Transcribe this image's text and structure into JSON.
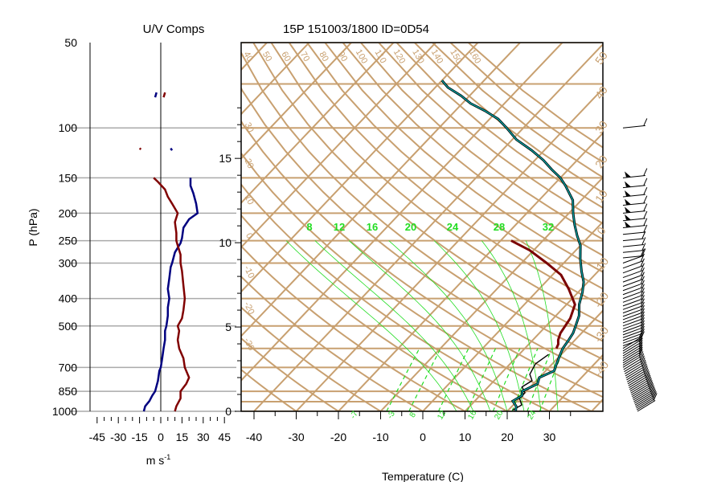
{
  "titles": {
    "left_title": "U/V Comps",
    "main_title": "15P 151003/1800 ID=0D54",
    "p_axis_label": "P (hPa)",
    "wind_axis_unit": "m s",
    "wind_axis_unit_sup": "-1",
    "temp_axis_label": "Temperature (C)"
  },
  "colors": {
    "isotherm": "#c8a070",
    "temperature": "#7a0000",
    "dewpoint": "#000000",
    "wind_u": "#000080",
    "wind_v": "#800000",
    "mixing_ratio": "#22dd22",
    "pressure_grid": "#aaaaaa",
    "frame": "#000000"
  },
  "chart_data": [
    {
      "type": "line",
      "title": "U/V Comps",
      "xlabel": "m s-1",
      "ylabel": "P (hPa)",
      "y_scale": "log",
      "xlim": [
        -50,
        50
      ],
      "ylim": [
        1000,
        50
      ],
      "x_ticks": [
        -45,
        -30,
        -15,
        0,
        15,
        30,
        45
      ],
      "p_levels": [
        1000,
        850,
        700,
        500,
        400,
        300,
        250,
        200,
        150,
        100,
        50
      ],
      "series": [
        {
          "key": "u",
          "color": "#000080",
          "points": [
            [
              -12,
              1000
            ],
            [
              -11,
              960
            ],
            [
              -8,
              920
            ],
            [
              -6,
              880
            ],
            [
              -4,
              850
            ],
            [
              -2,
              780
            ],
            [
              -1,
              720
            ],
            [
              0,
              700
            ],
            [
              1,
              650
            ],
            [
              2,
              600
            ],
            [
              3,
              560
            ],
            [
              3,
              520
            ],
            [
              4,
              500
            ],
            [
              5,
              460
            ],
            [
              5,
              430
            ],
            [
              6,
              400
            ],
            [
              5,
              370
            ],
            [
              6,
              340
            ],
            [
              7,
              310
            ],
            [
              8,
              300
            ],
            [
              10,
              275
            ],
            [
              14,
              255
            ],
            [
              15,
              245
            ],
            [
              16,
              225
            ],
            [
              20,
              210
            ],
            [
              26,
              200
            ],
            [
              25,
              185
            ],
            [
              23,
              170
            ],
            [
              21,
              160
            ],
            [
              21,
              150
            ]
          ]
        },
        {
          "key": "u_upper",
          "color": "#000080",
          "points": [
            [
              -3,
              75
            ],
            [
              -4,
              78
            ]
          ]
        },
        {
          "key": "u_upper2",
          "color": "#000080",
          "points": [
            [
              7,
              118
            ],
            [
              8,
              120
            ]
          ]
        },
        {
          "key": "v",
          "color": "#800000",
          "points": [
            [
              10,
              1000
            ],
            [
              11,
              960
            ],
            [
              14,
              900
            ],
            [
              14,
              850
            ],
            [
              18,
              800
            ],
            [
              20,
              760
            ],
            [
              18,
              720
            ],
            [
              17,
              700
            ],
            [
              16,
              650
            ],
            [
              13,
              600
            ],
            [
              12,
              560
            ],
            [
              13,
              520
            ],
            [
              12,
              500
            ],
            [
              15,
              470
            ],
            [
              16,
              440
            ],
            [
              17,
              400
            ],
            [
              16,
              360
            ],
            [
              15,
              320
            ],
            [
              14,
              300
            ],
            [
              14,
              280
            ],
            [
              12,
              260
            ],
            [
              11,
              250
            ],
            [
              11,
              235
            ],
            [
              10,
              215
            ],
            [
              12,
              200
            ],
            [
              8,
              185
            ],
            [
              5,
              175
            ],
            [
              3,
              165
            ],
            [
              -2,
              155
            ],
            [
              -5,
              150
            ]
          ]
        },
        {
          "key": "v_upper",
          "color": "#800000",
          "points": [
            [
              3,
              75
            ],
            [
              2,
              78
            ]
          ]
        },
        {
          "key": "v_upper2",
          "color": "#800000",
          "points": [
            [
              -15,
              118
            ],
            [
              -14,
              119
            ]
          ]
        }
      ]
    },
    {
      "type": "line",
      "title": "15P 151003/1800 ID=0D54",
      "xlabel": "Temperature (C)",
      "y_scale": "log",
      "skew": true,
      "xlim": [
        -43,
        41
      ],
      "ylim": [
        1000,
        50
      ],
      "x_ticks": [
        -40,
        -30,
        -20,
        -10,
        0,
        10,
        20,
        30
      ],
      "height_ticks_km": [
        0,
        5,
        10,
        15
      ],
      "isotherm_right_labels": [
        "50",
        "40",
        "30",
        "20",
        "10",
        "0",
        "-10",
        "-20",
        "-30",
        "-40"
      ],
      "potential_temp_top_labels": [
        "40",
        "50",
        "60",
        "70",
        "80",
        "90",
        "100",
        "110",
        "120",
        "130",
        "140",
        "150",
        "160"
      ],
      "potential_temp_left_labels": [
        "30",
        "20",
        "10",
        "0",
        "-10",
        "-20",
        "-30"
      ],
      "mixing_ratio_labels": [
        "8",
        "12",
        "16",
        "20",
        "24",
        "28",
        "32"
      ],
      "moist_bottom_labels": [
        "-7",
        "-3",
        "8",
        "12",
        "16",
        "20",
        "24"
      ],
      "series": [
        {
          "key": "temperature",
          "color": "#7a0000",
          "points": [
            [
              -17.5,
              250
            ],
            [
              -11,
              270
            ],
            [
              -4,
              300
            ],
            [
              2,
              330
            ],
            [
              7,
              370
            ],
            [
              12,
              420
            ],
            [
              14,
              470
            ],
            [
              15,
              530
            ],
            [
              16,
              560
            ],
            [
              17,
              580
            ],
            [
              17.5,
              600
            ]
          ]
        },
        {
          "key": "dewpoint",
          "color": "#000000",
          "points": [
            [
              17,
              630
            ],
            [
              16,
              680
            ],
            [
              17,
              740
            ],
            [
              19,
              780
            ],
            [
              18,
              820
            ],
            [
              20,
              860
            ],
            [
              20,
              900
            ],
            [
              22,
              950
            ],
            [
              21,
              990
            ]
          ]
        },
        {
          "key": "env_teal",
          "color": "#006060",
          "points": [
            [
              22,
              1000
            ],
            [
              21,
              960
            ],
            [
              19,
              920
            ],
            [
              20,
              880
            ],
            [
              19,
              850
            ],
            [
              21,
              800
            ],
            [
              20,
              760
            ],
            [
              22,
              720
            ],
            [
              21,
              680
            ],
            [
              20,
              640
            ],
            [
              19,
              600
            ],
            [
              18.5,
              560
            ],
            [
              18,
              530
            ],
            [
              17,
              500
            ],
            [
              15.5,
              460
            ],
            [
              13,
              420
            ],
            [
              11,
              380
            ],
            [
              9,
              350
            ],
            [
              6,
              320
            ],
            [
              3,
              290
            ],
            [
              0,
              260
            ],
            [
              -3,
              240
            ],
            [
              -6,
              220
            ],
            [
              -9,
              200
            ],
            [
              -12,
              180
            ],
            [
              -17,
              160
            ],
            [
              -20,
              150
            ],
            [
              -24,
              140
            ],
            [
              -28,
              130
            ],
            [
              -33,
              120
            ],
            [
              -39,
              110
            ],
            [
              -44,
              100
            ],
            [
              -48,
              93
            ],
            [
              -53,
              87
            ],
            [
              -58,
              82
            ],
            [
              -62,
              77
            ],
            [
              -67,
              72
            ],
            [
              -70,
              68
            ]
          ]
        }
      ]
    }
  ]
}
